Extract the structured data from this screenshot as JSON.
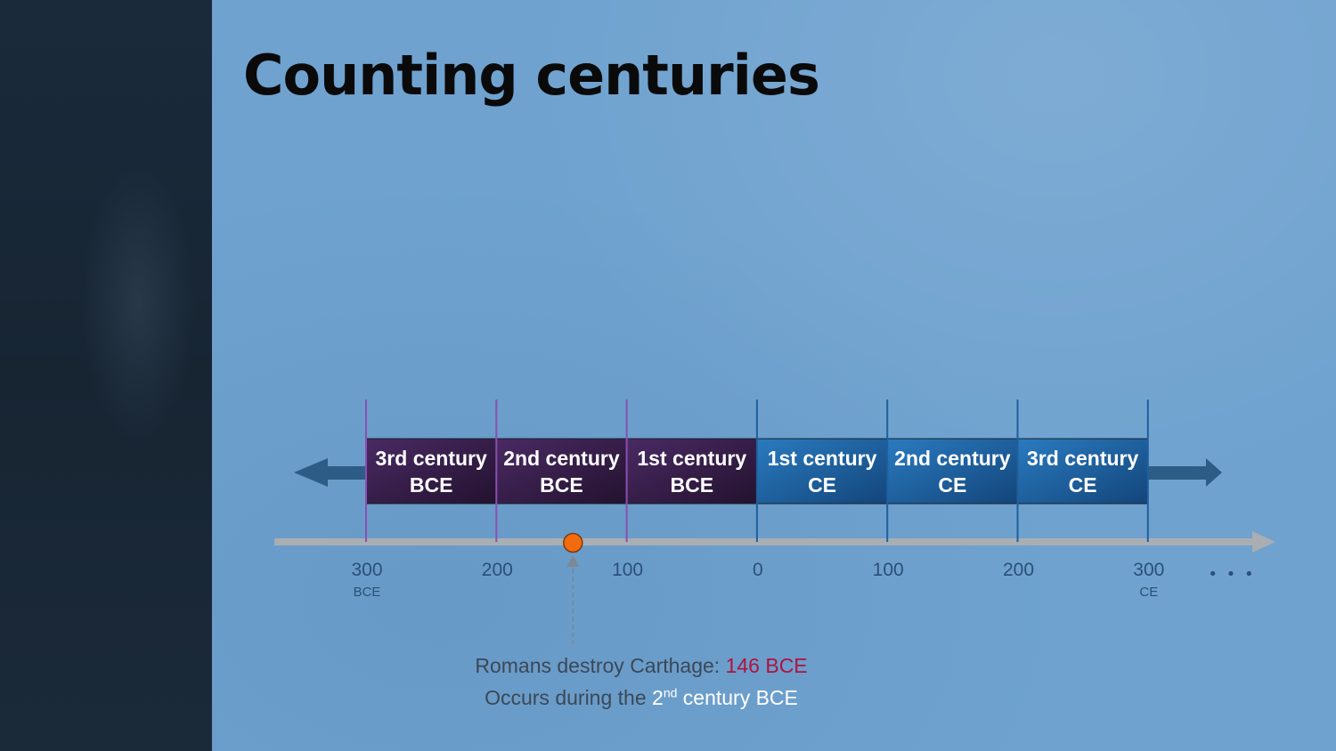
{
  "slide": {
    "title": "Counting centuries"
  },
  "timeline": {
    "segments": [
      {
        "line1": "3rd century",
        "line2": "BCE",
        "era": "BCE"
      },
      {
        "line1": "2nd century",
        "line2": "BCE",
        "era": "BCE"
      },
      {
        "line1": "1st century",
        "line2": "BCE",
        "era": "BCE"
      },
      {
        "line1": "1st century",
        "line2": "CE",
        "era": "CE"
      },
      {
        "line1": "2nd century",
        "line2": "CE",
        "era": "CE"
      },
      {
        "line1": "3rd century",
        "line2": "CE",
        "era": "CE"
      }
    ],
    "ticks": [
      {
        "label": "300",
        "sub": "BCE"
      },
      {
        "label": "200",
        "sub": ""
      },
      {
        "label": "100",
        "sub": ""
      },
      {
        "label": "0",
        "sub": ""
      },
      {
        "label": "100",
        "sub": ""
      },
      {
        "label": "200",
        "sub": ""
      },
      {
        "label": "300",
        "sub": "CE"
      }
    ],
    "ellipsis": "• • •",
    "event_year": -146,
    "colors": {
      "bce": "#3a1f4d",
      "ce": "#1f6aa8",
      "bce_line": "#8a4fb0",
      "ce_line": "#1f5f9c",
      "axis": "#a9aeb3",
      "marker": "#f26c0d",
      "side_arrow": "#2d5d86"
    }
  },
  "caption": {
    "line1_prefix": "Romans destroy Carthage: ",
    "line1_highlight": "146 BCE",
    "line2_prefix": "Occurs during the ",
    "line2_num": "2",
    "line2_sup": "nd",
    "line2_suffix": " century BCE"
  }
}
